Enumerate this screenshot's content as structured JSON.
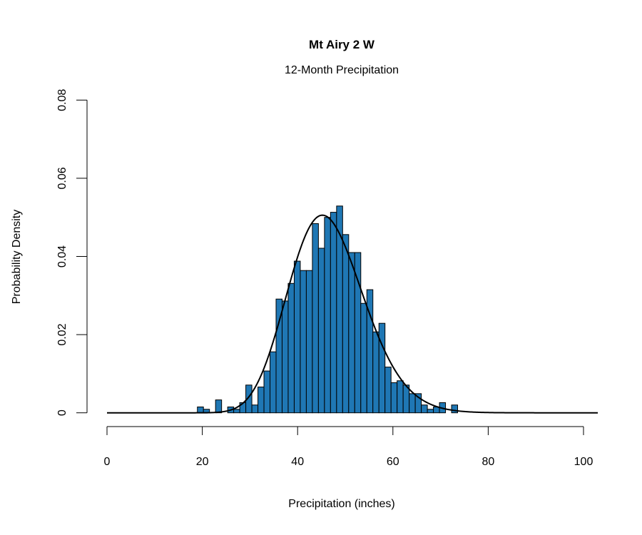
{
  "chart_data": {
    "type": "bar",
    "title": "Mt Airy 2 W",
    "subtitle": "12-Month Precipitation",
    "xlabel": "Precipitation (inches)",
    "ylabel": "Probability Density",
    "xlim": [
      0,
      103
    ],
    "ylim": [
      0,
      0.08
    ],
    "x_ticks": [
      "0",
      "20",
      "40",
      "60",
      "80",
      "100"
    ],
    "x_tick_values": [
      0,
      20,
      40,
      60,
      80,
      100
    ],
    "y_ticks": [
      "0",
      "0.02",
      "0.04",
      "0.06",
      "0.08"
    ],
    "y_tick_values": [
      0,
      0.02,
      0.04,
      0.06,
      0.08
    ],
    "grid": false,
    "bar_color": "#1f77b4",
    "bar_edge_color": "#000000",
    "bin_start": 18.97,
    "bin_width": 1.27,
    "densities": [
      0.0015,
      0.0009,
      0,
      0.0033,
      0,
      0.0015,
      0.0009,
      0.0026,
      0.0071,
      0.002,
      0.0066,
      0.0107,
      0.0156,
      0.0291,
      0.0286,
      0.0331,
      0.0388,
      0.0364,
      0.0364,
      0.0484,
      0.0421,
      0.05,
      0.0513,
      0.0529,
      0.0456,
      0.041,
      0.041,
      0.028,
      0.0315,
      0.0207,
      0.0229,
      0.0117,
      0.0077,
      0.0082,
      0.0071,
      0.0049,
      0.0049,
      0.002,
      0.0009,
      0.0015,
      0.0026,
      0,
      0.002
    ],
    "fitted_curve": {
      "distribution": "gamma",
      "shape": 34,
      "scale": 1.37,
      "color": "#000000",
      "x_range": [
        0,
        103
      ]
    }
  }
}
